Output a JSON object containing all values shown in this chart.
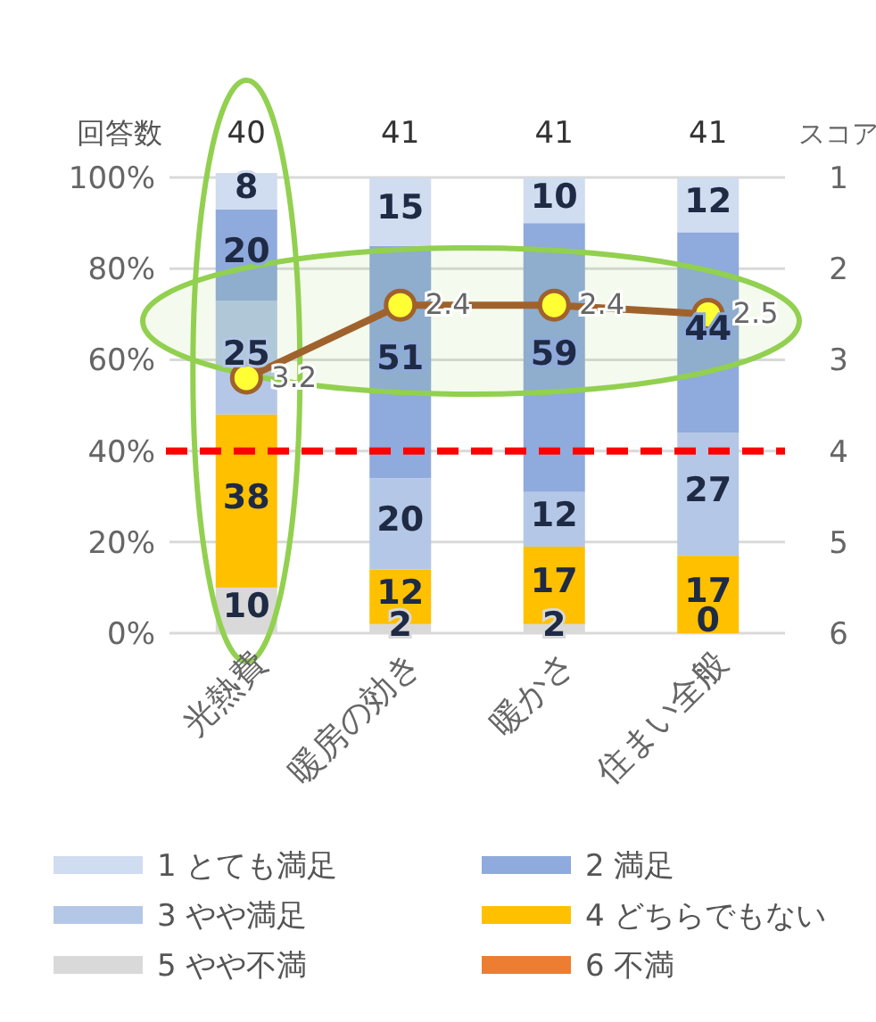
{
  "chart_data": {
    "type": "bar",
    "stacked": true,
    "categories": [
      "光熱費",
      "暖房の効き",
      "暖かさ",
      "住まい全般"
    ],
    "ylim": [
      0,
      101
    ],
    "yticks": [
      {
        "value": 0,
        "label": "0%"
      },
      {
        "value": 20,
        "label": "20%"
      },
      {
        "value": 40,
        "label": "40%"
      },
      {
        "value": 60,
        "label": "60%"
      },
      {
        "value": 80,
        "label": "80%"
      },
      {
        "value": 100,
        "label": "100%"
      }
    ],
    "y2lim": [
      6,
      0.95
    ],
    "y2ticks": [
      1,
      2,
      3,
      4,
      5,
      6
    ],
    "y2label": "スコア",
    "grid": "y",
    "legend": "bottom",
    "series": [
      {
        "name": "6 不満",
        "color": "#ed7d31",
        "values": [
          0,
          0,
          0,
          0
        ],
        "value_labels": [
          null,
          null,
          null,
          null
        ]
      },
      {
        "name": "5 やや不満",
        "color": "#d9d9d9",
        "values": [
          10,
          2,
          2,
          0
        ],
        "value_labels": [
          "10",
          "2",
          "2",
          null
        ]
      },
      {
        "name": "4 どちらでもない",
        "color": "#ffc000",
        "values": [
          38,
          12,
          17,
          17
        ],
        "value_labels": [
          "38",
          "12",
          "17",
          "17"
        ]
      },
      {
        "name": "3 やや満足",
        "color": "#b4c7e7",
        "values": [
          25,
          20,
          12,
          27
        ],
        "value_labels": [
          "25",
          "20",
          "12",
          "27"
        ]
      },
      {
        "name": "2 満足",
        "color": "#8faadc",
        "values": [
          20,
          51,
          59,
          44
        ],
        "value_labels": [
          "20",
          "51",
          "59",
          "44"
        ]
      },
      {
        "name": "1 とても満足",
        "color": "#d0dcf0",
        "values": [
          8,
          15,
          10,
          12
        ],
        "value_labels": [
          "8",
          "15",
          "10",
          "12"
        ]
      },
      {
        "type": "line",
        "axis": "y2",
        "color": "#a0622d",
        "marker": "circle",
        "values": [
          3.2,
          2.4,
          2.4,
          2.5
        ],
        "value_labels": [
          "3.2",
          "2.4",
          "2.4",
          "2.5"
        ]
      }
    ],
    "ref_lines": [
      {
        "axis": "y",
        "value": 40,
        "color": "#ff0000",
        "line_style": "dashed"
      }
    ],
    "annotations": [
      "回答数",
      "40",
      "41",
      "41",
      "41",
      {
        "text": "0",
        "x": "住まい全般",
        "y": 0
      }
    ]
  }
}
